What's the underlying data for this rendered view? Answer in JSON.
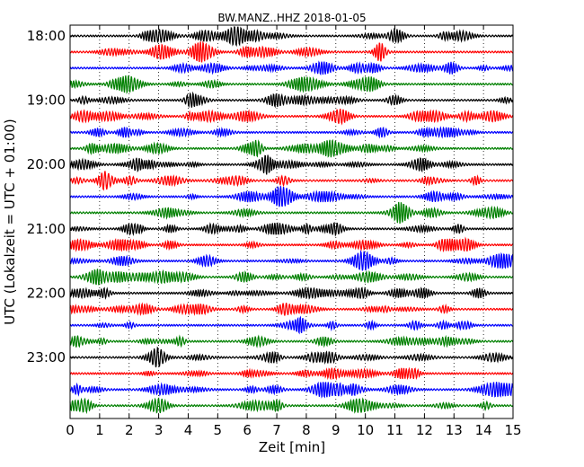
{
  "chart_data": {
    "type": "line",
    "title": "BW.MANZ..HHZ 2018-01-05",
    "xlabel": "Zeit  [min]",
    "ylabel": "UTC (Lokalzeit = UTC + 01:00)",
    "xlim": [
      0,
      15
    ],
    "x_ticks": [
      "0",
      "1",
      "2",
      "3",
      "4",
      "5",
      "6",
      "7",
      "8",
      "9",
      "10",
      "11",
      "12",
      "13",
      "14",
      "15"
    ],
    "y_tick_labels": [
      "18:00",
      "19:00",
      "20:00",
      "21:00",
      "22:00",
      "23:00"
    ],
    "trace_start_times": [
      "18:00",
      "18:15",
      "18:30",
      "18:45",
      "19:00",
      "19:15",
      "19:30",
      "19:45",
      "20:00",
      "20:15",
      "20:30",
      "20:45",
      "21:00",
      "21:15",
      "21:30",
      "21:45",
      "22:00",
      "22:15",
      "22:30",
      "22:45",
      "23:00",
      "23:15",
      "23:30",
      "23:45"
    ],
    "trace_colors": [
      "#000000",
      "#ff0000",
      "#0000ff",
      "#008000"
    ],
    "grid": "vertical dotted lines at each minute",
    "series_note": "Seismogram traces, 15 minutes per line, colors cycle black/red/blue/green"
  }
}
